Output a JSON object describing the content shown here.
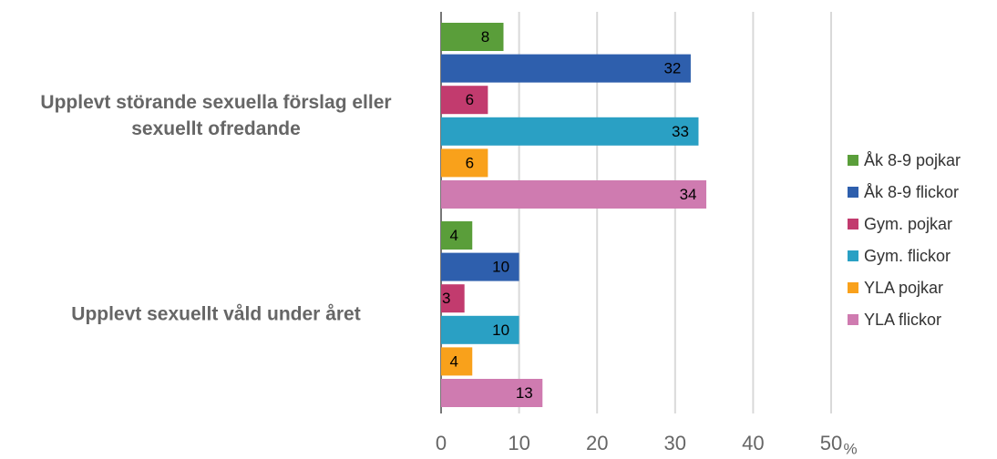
{
  "chart_data": {
    "type": "bar",
    "orientation": "horizontal",
    "categories": [
      "Upplevt störande sexuella förslag eller sexuellt ofredande",
      "Upplevt sexuellt våld under året"
    ],
    "series": [
      {
        "name": "Åk 8-9 pojkar",
        "color": "#5a9e3a",
        "values": [
          8,
          4
        ]
      },
      {
        "name": "Åk 8-9 flickor",
        "color": "#2e5fad",
        "values": [
          32,
          10
        ]
      },
      {
        "name": "Gym. pojkar",
        "color": "#c23b6e",
        "values": [
          6,
          3
        ]
      },
      {
        "name": "Gym. flickor",
        "color": "#2aa0c4",
        "values": [
          33,
          10
        ]
      },
      {
        "name": "YLA pojkar",
        "color": "#f9a11b",
        "values": [
          6,
          4
        ]
      },
      {
        "name": "YLA flickor",
        "color": "#cf7bb0",
        "values": [
          34,
          13
        ]
      }
    ],
    "x_label": "%",
    "xlim": [
      0,
      50
    ],
    "xticks": [
      0,
      10,
      20,
      30,
      40,
      50
    ],
    "grid": true,
    "legend": "right"
  }
}
